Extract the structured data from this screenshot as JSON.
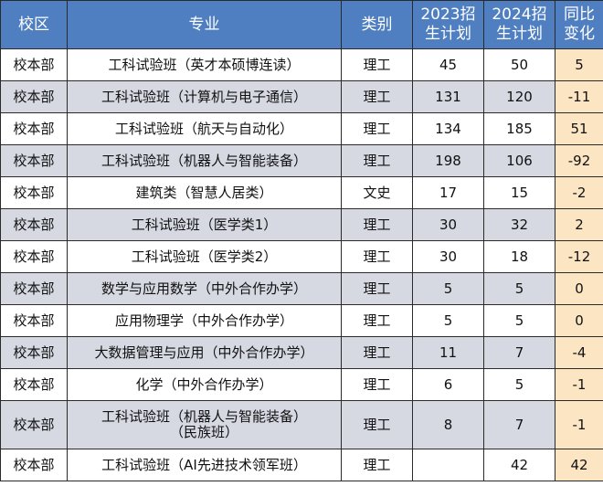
{
  "headers": {
    "campus": "校区",
    "major": "专业",
    "category": "类别",
    "plan2023": "2023招生计划",
    "plan2024": "2024招生计划",
    "change": "同比变化"
  },
  "rows": [
    {
      "campus": "校本部",
      "major": "工科试验班（英才本硕博连读）",
      "category": "理工",
      "plan2023": "45",
      "plan2024": "50",
      "change": "5"
    },
    {
      "campus": "校本部",
      "major": "工科试验班（计算机与电子通信）",
      "category": "理工",
      "plan2023": "131",
      "plan2024": "120",
      "change": "-11"
    },
    {
      "campus": "校本部",
      "major": "工科试验班（航天与自动化）",
      "category": "理工",
      "plan2023": "134",
      "plan2024": "185",
      "change": "51"
    },
    {
      "campus": "校本部",
      "major": "工科试验班（机器人与智能装备）",
      "category": "理工",
      "plan2023": "198",
      "plan2024": "106",
      "change": "-92"
    },
    {
      "campus": "校本部",
      "major": "建筑类（智慧人居类）",
      "category": "文史",
      "plan2023": "17",
      "plan2024": "15",
      "change": "-2"
    },
    {
      "campus": "校本部",
      "major": "工科试验班（医学类1）",
      "category": "理工",
      "plan2023": "30",
      "plan2024": "32",
      "change": "2"
    },
    {
      "campus": "校本部",
      "major": "工科试验班（医学类2）",
      "category": "理工",
      "plan2023": "30",
      "plan2024": "18",
      "change": "-12"
    },
    {
      "campus": "校本部",
      "major": "数学与应用数学（中外合作办学）",
      "category": "理工",
      "plan2023": "5",
      "plan2024": "5",
      "change": "0"
    },
    {
      "campus": "校本部",
      "major": "应用物理学（中外合作办学）",
      "category": "理工",
      "plan2023": "5",
      "plan2024": "5",
      "change": "0"
    },
    {
      "campus": "校本部",
      "major": "大数据管理与应用（中外合作办学）",
      "category": "理工",
      "plan2023": "11",
      "plan2024": "7",
      "change": "-4"
    },
    {
      "campus": "校本部",
      "major": "化学（中外合作办学）",
      "category": "理工",
      "plan2023": "6",
      "plan2024": "5",
      "change": "-1"
    },
    {
      "campus": "校本部",
      "major": "工科试验班（机器人与智能装备）\n（民族班）",
      "category": "理工",
      "plan2023": "8",
      "plan2024": "7",
      "change": "-1"
    },
    {
      "campus": "校本部",
      "major": "工科试验班（AI先进技术领军班）",
      "category": "理工",
      "plan2023": "",
      "plan2024": "42",
      "change": "42"
    }
  ]
}
